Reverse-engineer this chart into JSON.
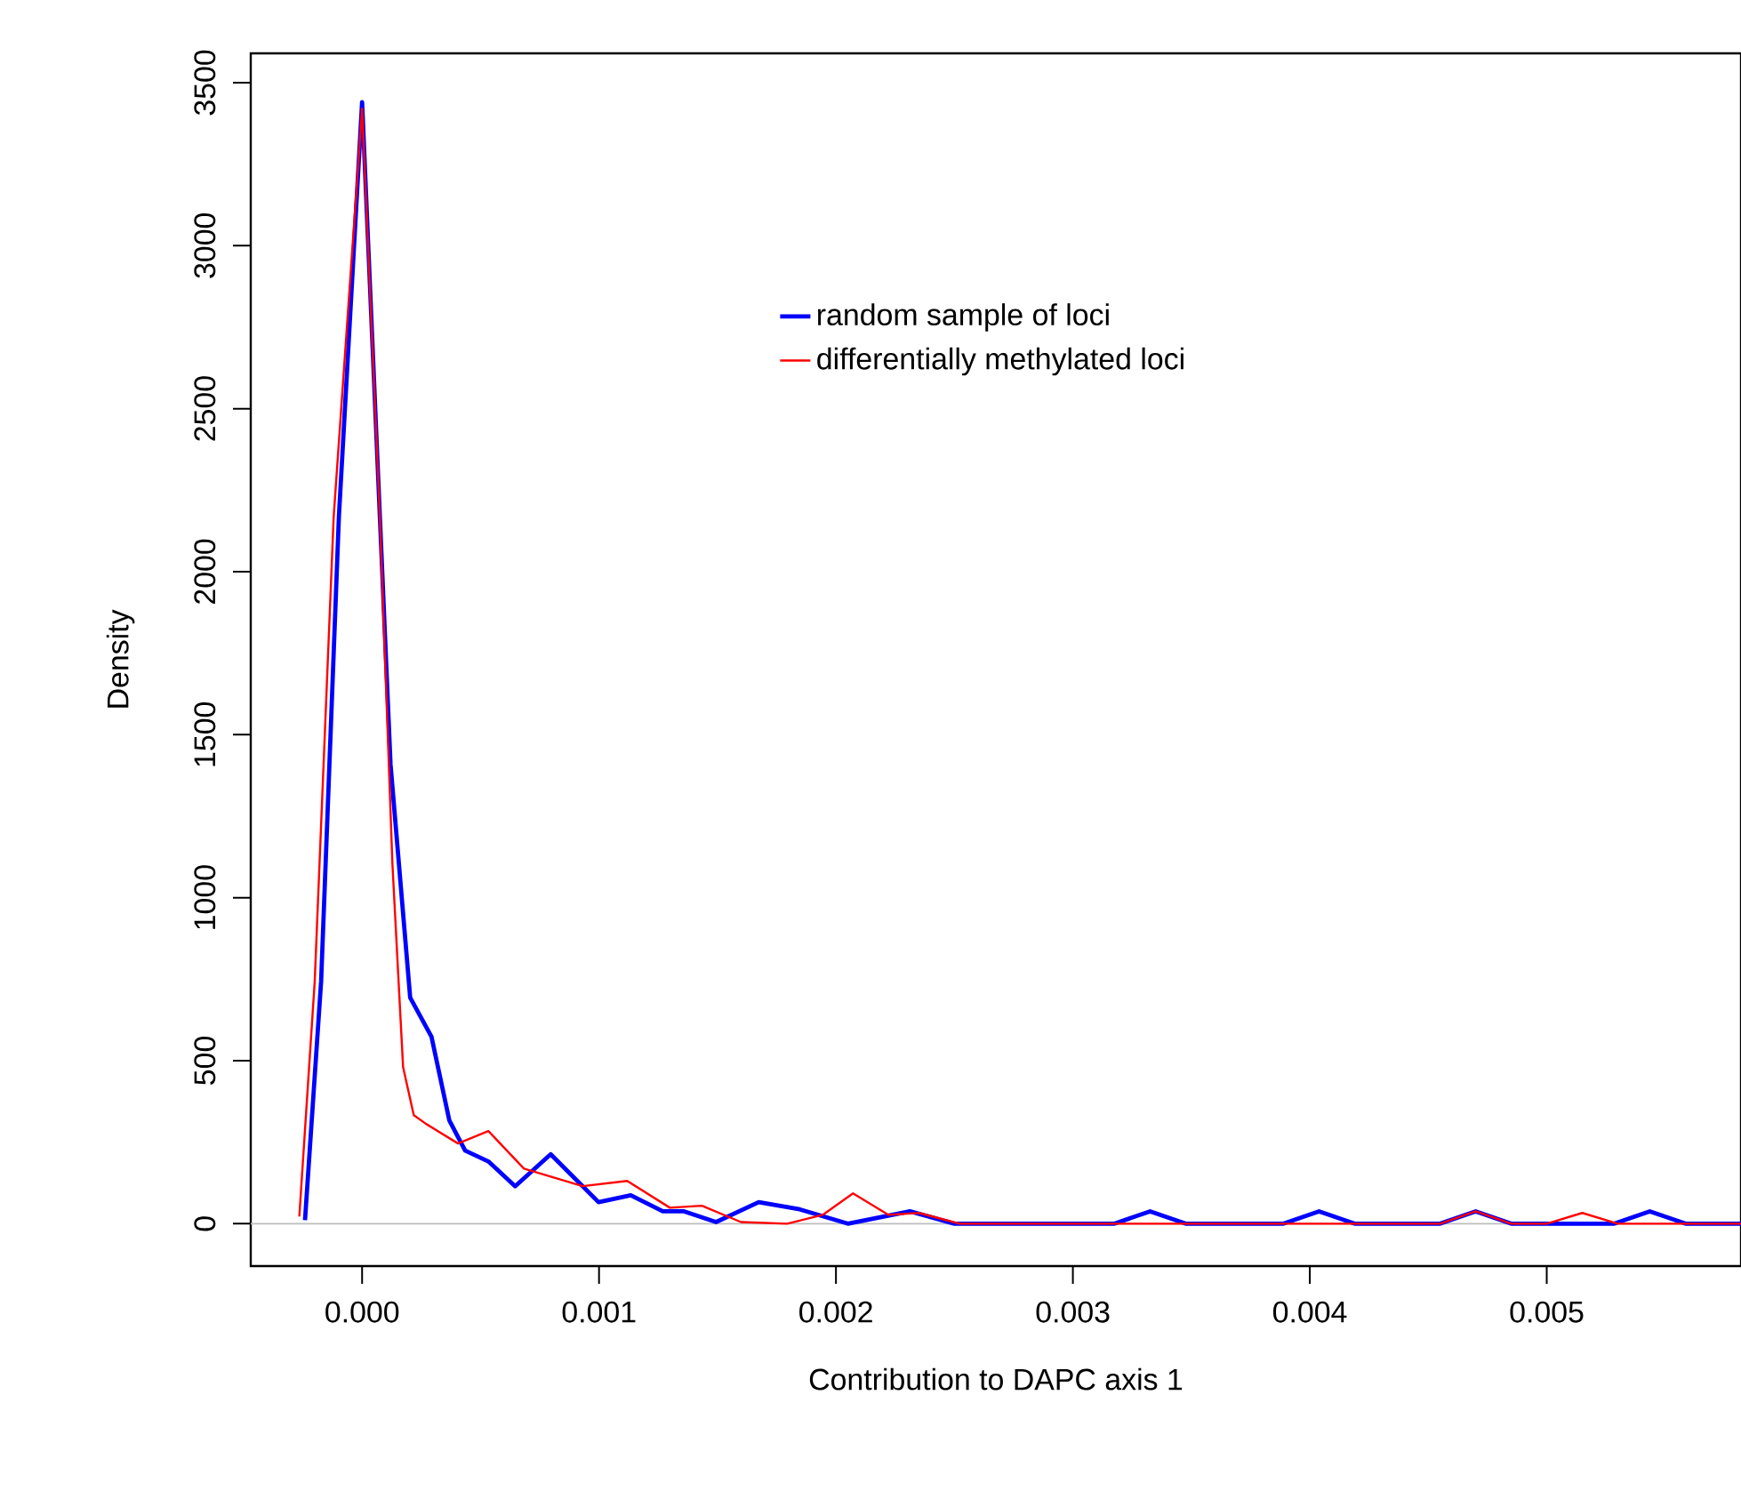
{
  "chart_data": {
    "type": "line",
    "xlabel": "Contribution to DAPC axis 1",
    "ylabel": "Density",
    "xlim": [
      -0.00047,
      0.00582
    ],
    "ylim": [
      -130,
      3590
    ],
    "xticks": [
      {
        "value": 0,
        "label": "0.000"
      },
      {
        "value": 0.001,
        "label": "0.001"
      },
      {
        "value": 0.002,
        "label": "0.002"
      },
      {
        "value": 0.003,
        "label": "0.003"
      },
      {
        "value": 0.004,
        "label": "0.004"
      },
      {
        "value": 0.005,
        "label": "0.005"
      }
    ],
    "yticks": [
      0,
      500,
      1000,
      1500,
      2000,
      2500,
      3000,
      3500
    ],
    "legend": "top right",
    "grid": false,
    "ref_lines": [
      {
        "axis": "y",
        "value": 0,
        "color": "#bebebe"
      }
    ],
    "series": [
      {
        "name": "random sample of loci",
        "color": "#0000ff",
        "x": [
          -0.000241,
          -0.000173,
          -9.8e-05,
          0.0,
          7.5e-05,
          0.00012,
          0.000203,
          0.000293,
          0.000368,
          0.000435,
          0.000533,
          0.000646,
          0.000796,
          0.000998,
          0.001134,
          0.001269,
          0.001359,
          0.001494,
          0.001674,
          0.001847,
          0.00205,
          0.002312,
          0.0025,
          0.003176,
          0.003326,
          0.003476,
          0.003889,
          0.004039,
          0.004189,
          0.00455,
          0.0047,
          0.00485,
          0.005285,
          0.005435,
          0.005586,
          0.00582
        ],
        "values": [
          11,
          743,
          2168,
          3440,
          2168,
          1409,
          693,
          573,
          317,
          224,
          191,
          115,
          213,
          66,
          87,
          38,
          38,
          5,
          66,
          44,
          0,
          38,
          0,
          0,
          38,
          0,
          0,
          38,
          0,
          0,
          38,
          0,
          0,
          38,
          0,
          0
        ]
      },
      {
        "name": "differentially methylated loci",
        "color": "#ff0000",
        "x": [
          -0.000265,
          -0.0002,
          -0.00012,
          0.0,
          7.5e-05,
          0.000128,
          0.000173,
          0.000218,
          0.00027,
          0.000405,
          0.000533,
          0.000683,
          0.000931,
          0.001119,
          0.001299,
          0.001434,
          0.001599,
          0.001794,
          0.001944,
          0.002072,
          0.002222,
          0.00235,
          0.002523,
          0.00455,
          0.0047,
          0.00485,
          0.005,
          0.00515,
          0.0053,
          0.00582
        ],
        "values": [
          22,
          743,
          2168,
          3420,
          2168,
          1103,
          480,
          333,
          306,
          246,
          284,
          169,
          115,
          131,
          49,
          55,
          5,
          0,
          27,
          93,
          27,
          33,
          0,
          0,
          38,
          0,
          0,
          33,
          0,
          0
        ]
      }
    ]
  }
}
